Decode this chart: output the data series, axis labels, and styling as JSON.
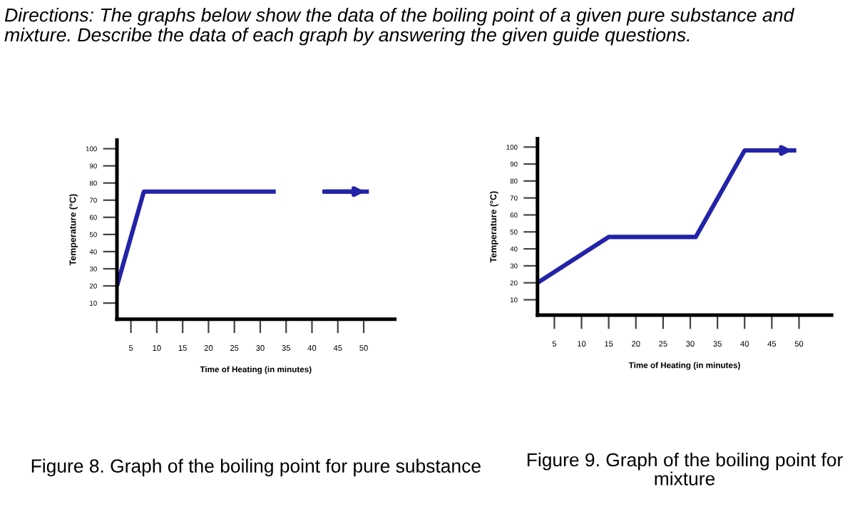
{
  "chart_data": [
    {
      "type": "line",
      "title": "Figure 8. Graph of the boiling point for pure substance",
      "xlabel": "Time of Heating (in minutes)",
      "ylabel": "Temperature (°C)",
      "annotations": [
        "Directions: The graphs below show the data of the boiling point of a given pure substance and mixture. Describe the data of each graph by answering the given guide questions."
      ],
      "x": [
        2.3,
        7.5,
        33,
        38,
        42,
        51
      ],
      "values": [
        20,
        75,
        75,
        null,
        75,
        75
      ],
      "color": "#2323a8",
      "xlim": [
        2.3,
        56
      ],
      "ylim": [
        0.6,
        105
      ],
      "xticks": [
        5,
        10,
        15,
        20,
        25,
        30,
        35,
        40,
        45,
        50
      ],
      "yticks": [
        10,
        20,
        30,
        40,
        50,
        60,
        70,
        80,
        90,
        100
      ]
    },
    {
      "type": "line",
      "title": "Figure 9. Graph of the boiling point for mixture",
      "xlabel": "Time of Heating (in minutes)",
      "ylabel": "Temperature (°C)",
      "x": [
        1.9,
        15,
        31,
        40,
        49.5
      ],
      "values": [
        20,
        47,
        47,
        98,
        98
      ],
      "color": "#2323a8",
      "xlim": [
        1.9,
        56
      ],
      "ylim": [
        1,
        105
      ],
      "xticks": [
        5,
        10,
        15,
        20,
        25,
        30,
        35,
        40,
        45,
        50
      ],
      "yticks": [
        10,
        20,
        30,
        40,
        50,
        60,
        70,
        80,
        90,
        100
      ]
    }
  ]
}
